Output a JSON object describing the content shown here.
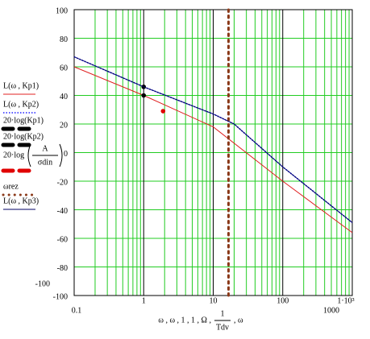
{
  "chart_data": {
    "type": "line",
    "log_x": true,
    "grid": true,
    "grid_color": "#22cc22",
    "xlim": [
      0.1,
      1000
    ],
    "ylim": [
      -100,
      100
    ],
    "xticks": [
      1,
      10,
      100,
      {
        "value": 1000,
        "label": "1·10³"
      }
    ],
    "yticks": [
      100,
      80,
      60,
      40,
      20,
      0,
      -20,
      -40,
      -60,
      -80,
      -100
    ],
    "xlabel_parts": [
      "ω , ω , 1 , 1 , Ω ,",
      "1",
      "Tdv",
      ", ω"
    ],
    "series": [
      {
        "name": "L(ω , Kp1)",
        "style": "solid",
        "color": "#e02020",
        "x": [
          0.1,
          1,
          10,
          100,
          1000
        ],
        "values": [
          60,
          40,
          18,
          -20,
          -56
        ]
      },
      {
        "name": "L(ω , Kp2)",
        "style": "dotted",
        "color": "#2020ff",
        "x": [
          0.1,
          1,
          10,
          20,
          100,
          1000
        ],
        "values": [
          67,
          46,
          27,
          20,
          -10,
          -49
        ]
      },
      {
        "name": "20·log(Kp1)",
        "style": "point",
        "color": "#000000",
        "x": [
          1
        ],
        "values": [
          46
        ]
      },
      {
        "name": "20·log(Kp2)",
        "style": "point",
        "color": "#000000",
        "x": [
          1
        ],
        "values": [
          40
        ]
      },
      {
        "name": "20·log",
        "name_fraction": [
          "A",
          "σdin"
        ],
        "style": "point",
        "color": "#e00000",
        "x": [
          1.9
        ],
        "values": [
          29
        ]
      },
      {
        "name": "ωrez",
        "style": "vline",
        "color": "#8b3a1a",
        "x": [
          16.6
        ]
      },
      {
        "name": "L(ω , Kp3)",
        "style": "solid",
        "color": "#000066",
        "x": [
          0.1,
          1,
          10,
          20,
          100,
          1000
        ],
        "values": [
          67,
          46,
          27,
          20,
          -10,
          -49
        ]
      }
    ]
  }
}
